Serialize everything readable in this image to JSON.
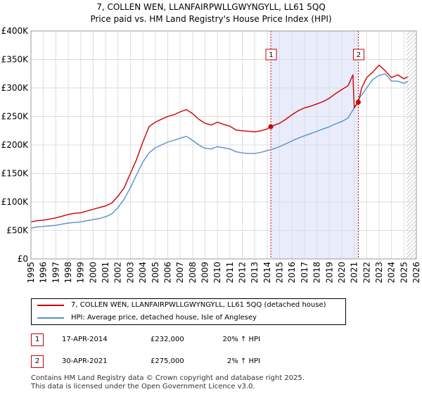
{
  "chart_data": {
    "type": "line",
    "title": "7, COLLEN WEN, LLANFAIRPWLLGWYNGYLL, LL61 5QQ",
    "subtitle": "Price paid vs. HM Land Registry's House Price Index (HPI)",
    "xlabel": "",
    "ylabel": "",
    "xlim": [
      1995,
      2026
    ],
    "ylim": [
      0,
      400000
    ],
    "x_ticks": [
      "1995",
      "1996",
      "1997",
      "1998",
      "1999",
      "2000",
      "2001",
      "2002",
      "2003",
      "2004",
      "2005",
      "2006",
      "2007",
      "2008",
      "2009",
      "2010",
      "2011",
      "2012",
      "2013",
      "2014",
      "2015",
      "2016",
      "2017",
      "2018",
      "2019",
      "2020",
      "2021",
      "2022",
      "2023",
      "2024",
      "2025",
      "2026"
    ],
    "y_ticks": [
      {
        "value": 0,
        "label": "£0"
      },
      {
        "value": 50000,
        "label": "£50K"
      },
      {
        "value": 100000,
        "label": "£100K"
      },
      {
        "value": 150000,
        "label": "£150K"
      },
      {
        "value": 200000,
        "label": "£200K"
      },
      {
        "value": 250000,
        "label": "£250K"
      },
      {
        "value": 300000,
        "label": "£300K"
      },
      {
        "value": 350000,
        "label": "£350K"
      },
      {
        "value": 400000,
        "label": "£400K"
      }
    ],
    "grid": true,
    "highlight_span": {
      "from": 2014.29,
      "to": 2021.33
    },
    "hatched_after": 2025.2,
    "series": [
      {
        "name": "7, COLLEN WEN, LLANFAIRPWLLGWYNGYLL, LL61 5QQ (detached house)",
        "color": "#cc0000",
        "x": [
          1995.0,
          1995.5,
          1996.0,
          1996.5,
          1997.0,
          1997.5,
          1998.0,
          1998.5,
          1999.0,
          1999.5,
          2000.0,
          2000.5,
          2001.0,
          2001.5,
          2002.0,
          2002.5,
          2003.0,
          2003.5,
          2004.0,
          2004.5,
          2005.0,
          2005.5,
          2006.0,
          2006.5,
          2007.0,
          2007.5,
          2008.0,
          2008.5,
          2009.0,
          2009.5,
          2010.0,
          2010.5,
          2011.0,
          2011.5,
          2012.0,
          2012.5,
          2013.0,
          2013.5,
          2014.0,
          2014.29,
          2014.6,
          2015.0,
          2015.5,
          2016.0,
          2016.5,
          2017.0,
          2017.5,
          2018.0,
          2018.5,
          2019.0,
          2019.5,
          2020.0,
          2020.5,
          2020.9,
          2021.0,
          2021.33,
          2021.6,
          2022.0,
          2022.5,
          2023.0,
          2023.5,
          2024.0,
          2024.5,
          2025.0,
          2025.3
        ],
        "y": [
          65000,
          67000,
          68000,
          70000,
          72000,
          75000,
          78000,
          80000,
          81000,
          84000,
          87000,
          90000,
          93000,
          98000,
          110000,
          125000,
          150000,
          175000,
          205000,
          232000,
          240000,
          245000,
          250000,
          253000,
          258000,
          262000,
          255000,
          245000,
          238000,
          235000,
          240000,
          236000,
          233000,
          226000,
          225000,
          224000,
          223000,
          225000,
          228000,
          232000,
          235000,
          238000,
          245000,
          253000,
          260000,
          265000,
          268000,
          272000,
          276000,
          282000,
          290000,
          297000,
          304000,
          323000,
          265000,
          275000,
          300000,
          318000,
          328000,
          340000,
          330000,
          318000,
          323000,
          316000,
          320000
        ]
      },
      {
        "name": "HPI: Average price, detached house, Isle of Anglesey",
        "color": "#5b8fcc",
        "x": [
          1995.0,
          1995.5,
          1996.0,
          1996.5,
          1997.0,
          1997.5,
          1998.0,
          1998.5,
          1999.0,
          1999.5,
          2000.0,
          2000.5,
          2001.0,
          2001.5,
          2002.0,
          2002.5,
          2003.0,
          2003.5,
          2004.0,
          2004.5,
          2005.0,
          2005.5,
          2006.0,
          2006.5,
          2007.0,
          2007.5,
          2008.0,
          2008.5,
          2009.0,
          2009.5,
          2010.0,
          2010.5,
          2011.0,
          2011.5,
          2012.0,
          2012.5,
          2013.0,
          2013.5,
          2014.0,
          2014.5,
          2015.0,
          2015.5,
          2016.0,
          2016.5,
          2017.0,
          2017.5,
          2018.0,
          2018.5,
          2019.0,
          2019.5,
          2020.0,
          2020.5,
          2021.0,
          2021.5,
          2022.0,
          2022.5,
          2023.0,
          2023.5,
          2024.0,
          2024.5,
          2025.0,
          2025.3
        ],
        "y": [
          54000,
          56000,
          57000,
          58000,
          59000,
          61000,
          63000,
          64000,
          65000,
          67000,
          69000,
          71000,
          74000,
          79000,
          90000,
          105000,
          125000,
          148000,
          170000,
          186000,
          195000,
          200000,
          205000,
          208000,
          212000,
          215000,
          208000,
          200000,
          194000,
          193000,
          197000,
          195000,
          193000,
          188000,
          186000,
          185000,
          185000,
          187000,
          190000,
          193000,
          197000,
          202000,
          207000,
          212000,
          216000,
          220000,
          224000,
          228000,
          232000,
          237000,
          241000,
          247000,
          265000,
          285000,
          300000,
          315000,
          322000,
          325000,
          312000,
          312000,
          308000,
          312000
        ]
      }
    ],
    "markers": [
      {
        "label": "1",
        "x": 2014.29,
        "y": 232000,
        "color": "#cc0000"
      },
      {
        "label": "2",
        "x": 2021.33,
        "y": 275000,
        "color": "#cc0000"
      }
    ],
    "colors": {
      "grid": "#dddddd",
      "span": "#e8ecfb",
      "marker": "#cc0000"
    }
  },
  "legend": {
    "red_label": "7, COLLEN WEN, LLANFAIRPWLLGWYNGYLL, LL61 5QQ (detached house)",
    "blue_label": "HPI: Average price, detached house, Isle of Anglesey"
  },
  "transactions": [
    {
      "num": "1",
      "date": "17-APR-2014",
      "price": "£232,000",
      "hpi": "20% ↑ HPI"
    },
    {
      "num": "2",
      "date": "30-APR-2021",
      "price": "£275,000",
      "hpi": "2% ↑ HPI"
    }
  ],
  "footer": {
    "line1": "Contains HM Land Registry data © Crown copyright and database right 2025.",
    "line2": "This data is licensed under the Open Government Licence v3.0."
  }
}
